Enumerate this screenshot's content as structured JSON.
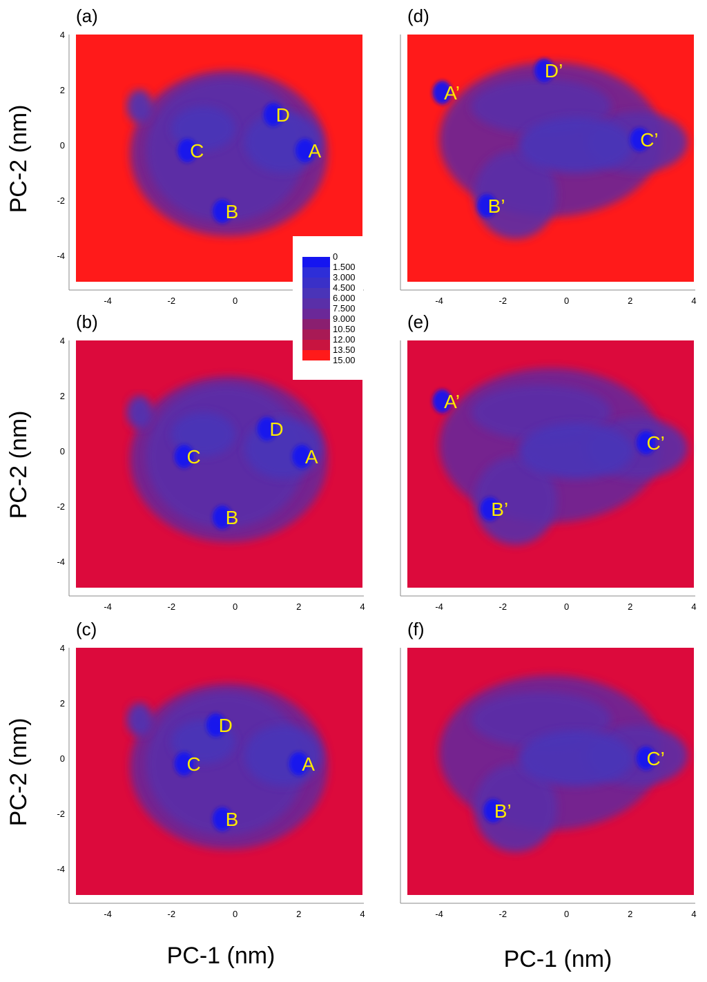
{
  "figure": {
    "x_axis_title": "PC-1 (nm)",
    "y_axis_title": "PC-2 (nm)"
  },
  "colorbar": {
    "levels": [
      "0",
      "1.500",
      "3.000",
      "4.500",
      "6.000",
      "7.500",
      "9.000",
      "10.50",
      "12.00",
      "13.50",
      "15.00"
    ],
    "colors": [
      "#1515f0",
      "#2e2ed8",
      "#3a30c8",
      "#4a34b8",
      "#5a2fa8",
      "#6b2898",
      "#8a1f70",
      "#a81a55",
      "#c81440",
      "#ff1a1a"
    ]
  },
  "chart_data": [
    {
      "type": "heatmap",
      "panel": "(a)",
      "xlabel": "",
      "ylabel": "PC-2 (nm)",
      "xlim": [
        -5,
        4
      ],
      "ylim": [
        -5,
        4
      ],
      "xticks": [
        "-4",
        "-2",
        "0"
      ],
      "yticks": [
        "4",
        "2",
        "0",
        "-2",
        "-4"
      ],
      "background": "#ff1a1a",
      "basins": [
        {
          "label": "A",
          "x": 2.5,
          "y": -0.2
        },
        {
          "label": "B",
          "x": -0.1,
          "y": -2.4
        },
        {
          "label": "C",
          "x": -1.2,
          "y": -0.2
        },
        {
          "label": "D",
          "x": 1.5,
          "y": 1.1
        }
      ]
    },
    {
      "type": "heatmap",
      "panel": "(b)",
      "xlabel": "",
      "ylabel": "PC-2 (nm)",
      "xlim": [
        -5,
        4
      ],
      "ylim": [
        -5,
        4
      ],
      "xticks": [
        "-4",
        "-2",
        "0",
        "2",
        "4"
      ],
      "yticks": [
        "4",
        "2",
        "0",
        "-2",
        "-4"
      ],
      "background": "#dc0a3c",
      "basins": [
        {
          "label": "A",
          "x": 2.4,
          "y": -0.2
        },
        {
          "label": "B",
          "x": -0.1,
          "y": -2.4
        },
        {
          "label": "C",
          "x": -1.3,
          "y": -0.2
        },
        {
          "label": "D",
          "x": 1.3,
          "y": 0.8
        }
      ]
    },
    {
      "type": "heatmap",
      "panel": "(c)",
      "xlabel": "PC-1 (nm)",
      "ylabel": "PC-2 (nm)",
      "xlim": [
        -5,
        4
      ],
      "ylim": [
        -5,
        4
      ],
      "xticks": [
        "-4",
        "-2",
        "0",
        "2",
        "4"
      ],
      "yticks": [
        "4",
        "2",
        "0",
        "-2",
        "-4"
      ],
      "background": "#dc0a3c",
      "basins": [
        {
          "label": "A",
          "x": 2.3,
          "y": -0.2
        },
        {
          "label": "B",
          "x": -0.1,
          "y": -2.2
        },
        {
          "label": "C",
          "x": -1.3,
          "y": -0.2
        },
        {
          "label": "D",
          "x": -0.3,
          "y": 1.2
        }
      ]
    },
    {
      "type": "heatmap",
      "panel": "(d)",
      "xlabel": "",
      "ylabel": "",
      "xlim": [
        -5,
        4
      ],
      "ylim": [
        -5,
        4
      ],
      "xticks": [
        "-4",
        "-2",
        "0",
        "2",
        "4"
      ],
      "yticks": [],
      "background": "#ff1a1a",
      "basins": [
        {
          "label": "A’",
          "x": -3.6,
          "y": 1.9
        },
        {
          "label": "B’",
          "x": -2.2,
          "y": -2.2
        },
        {
          "label": "C’",
          "x": 2.6,
          "y": 0.2
        },
        {
          "label": "D’",
          "x": -0.4,
          "y": 2.7
        }
      ]
    },
    {
      "type": "heatmap",
      "panel": "(e)",
      "xlabel": "",
      "ylabel": "",
      "xlim": [
        -5,
        4
      ],
      "ylim": [
        -5,
        4
      ],
      "xticks": [
        "-4",
        "-2",
        "0",
        "2",
        "4"
      ],
      "yticks": [],
      "background": "#dc0a3c",
      "basins": [
        {
          "label": "A’",
          "x": -3.6,
          "y": 1.8
        },
        {
          "label": "B’",
          "x": -2.1,
          "y": -2.1
        },
        {
          "label": "C’",
          "x": 2.8,
          "y": 0.3
        }
      ]
    },
    {
      "type": "heatmap",
      "panel": "(f)",
      "xlabel": "PC-1 (nm)",
      "ylabel": "",
      "xlim": [
        -5,
        4
      ],
      "ylim": [
        -5,
        4
      ],
      "xticks": [
        "-4",
        "-2",
        "0",
        "2",
        "4"
      ],
      "yticks": [],
      "background": "#dc0a3c",
      "basins": [
        {
          "label": "B’",
          "x": -2.0,
          "y": -1.9
        },
        {
          "label": "C’",
          "x": 2.8,
          "y": 0.0
        }
      ]
    }
  ]
}
